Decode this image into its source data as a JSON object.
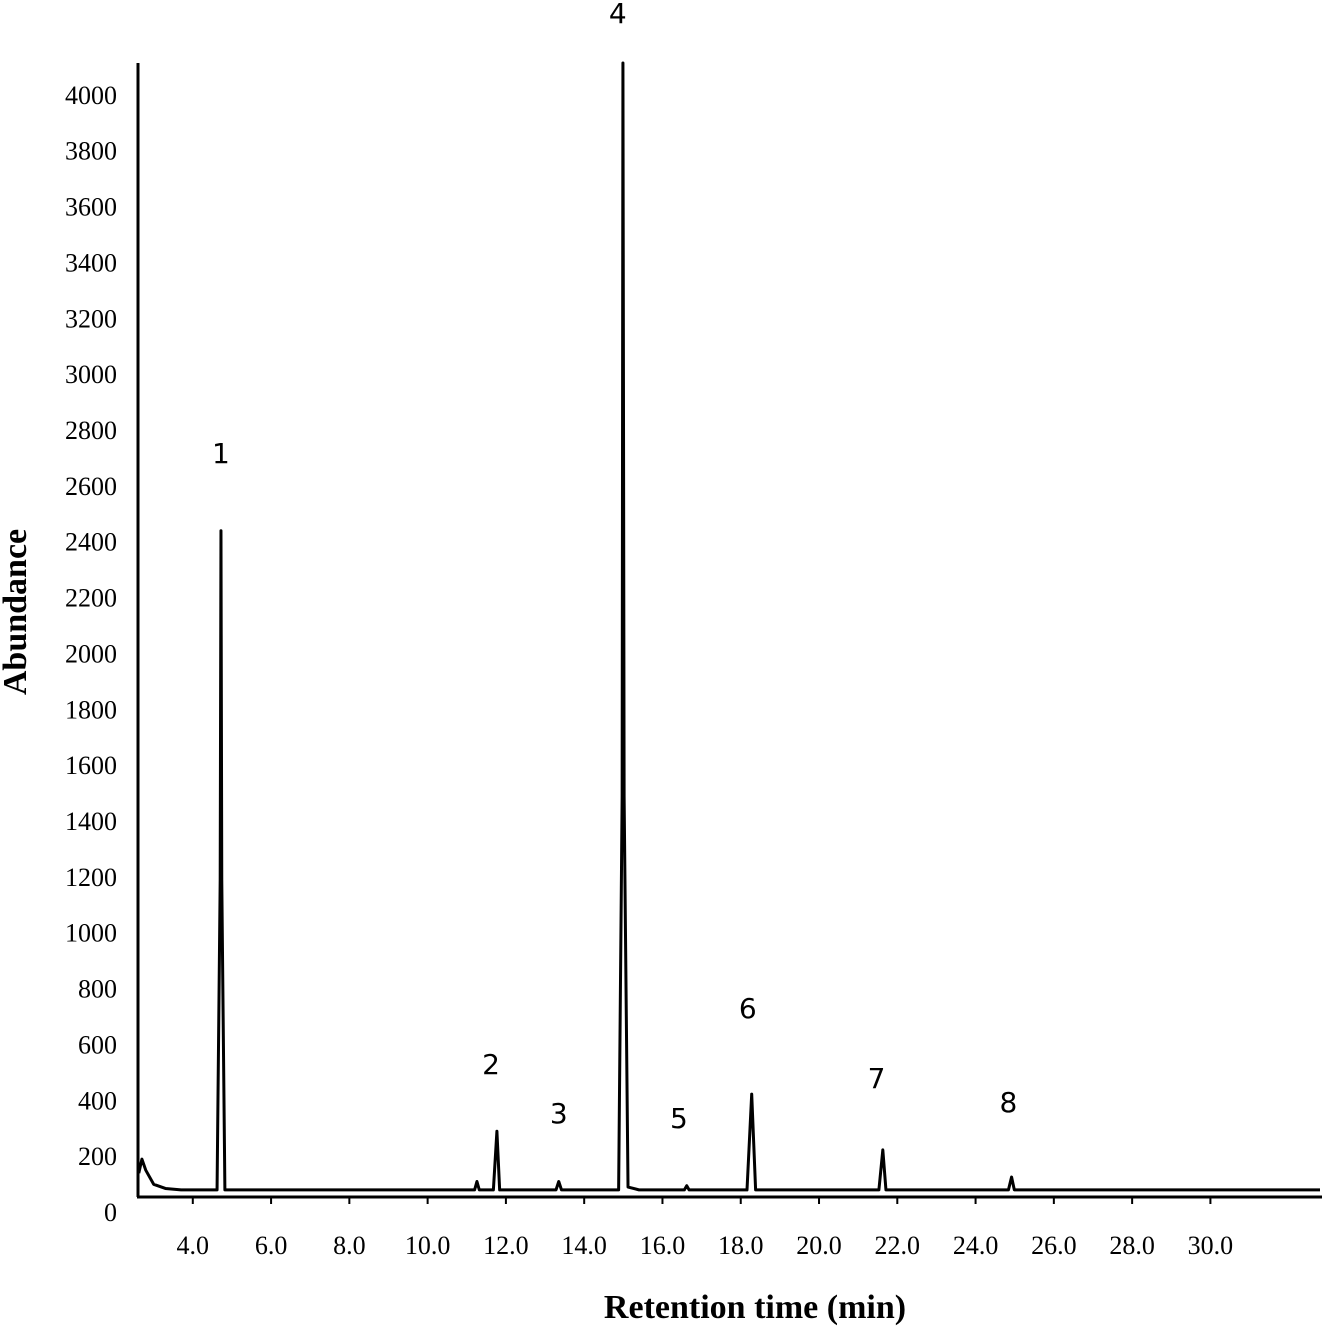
{
  "chart_data": {
    "type": "line",
    "xlabel": "Retention time (min)",
    "ylabel": "Abundance",
    "xlim": [
      2.6,
      32.8
    ],
    "ylim": [
      0,
      4125
    ],
    "xticks": [
      {
        "value": 4,
        "label": "4.0"
      },
      {
        "value": 6,
        "label": "6.0"
      },
      {
        "value": 8,
        "label": "8.0"
      },
      {
        "value": 10,
        "label": "10.0"
      },
      {
        "value": 12,
        "label": "12.0"
      },
      {
        "value": 14,
        "label": "14.0"
      },
      {
        "value": 16,
        "label": "16.0"
      },
      {
        "value": 18,
        "label": "18.0"
      },
      {
        "value": 20,
        "label": "20.0"
      },
      {
        "value": 22,
        "label": "22.0"
      },
      {
        "value": 24,
        "label": "24.0"
      },
      {
        "value": 26,
        "label": "26.0"
      },
      {
        "value": 28,
        "label": "28.0"
      },
      {
        "value": 30,
        "label": "30.0"
      }
    ],
    "yticks": [
      0,
      200,
      400,
      600,
      800,
      1000,
      1200,
      1400,
      1600,
      1800,
      2000,
      2200,
      2400,
      2600,
      2800,
      3000,
      3200,
      3400,
      3600,
      3800,
      4000
    ],
    "grid": false,
    "series": [
      {
        "color": "#000000",
        "x": [
          2.62,
          2.7,
          2.8,
          3.0,
          3.3,
          3.7,
          4.62,
          4.7,
          4.72,
          4.74,
          4.82,
          11.2,
          11.26,
          11.32,
          11.68,
          11.77,
          11.84,
          13.28,
          13.35,
          13.42,
          14.88,
          14.97,
          14.99,
          15.02,
          15.12,
          15.4,
          16.56,
          16.62,
          16.68,
          18.16,
          18.28,
          18.38,
          21.53,
          21.63,
          21.71,
          24.84,
          24.92,
          24.99,
          32.8
        ],
        "values": [
          150,
          200,
          160,
          110,
          95,
          90,
          90,
          1200,
          2450,
          1200,
          90,
          90,
          120,
          90,
          90,
          300,
          90,
          90,
          120,
          90,
          90,
          1500,
          4125,
          1500,
          100,
          90,
          90,
          105,
          90,
          90,
          433,
          90,
          90,
          233,
          90,
          90,
          136,
          90,
          90
        ]
      }
    ],
    "annotations": [
      {
        "text": "1",
        "x": 4.72,
        "y": 2722
      },
      {
        "text": "2",
        "x": 11.62,
        "y": 534
      },
      {
        "text": "3",
        "x": 13.35,
        "y": 358
      },
      {
        "text": "4",
        "x": 14.86,
        "y": 4297
      },
      {
        "text": "5",
        "x": 16.42,
        "y": 340
      },
      {
        "text": "6",
        "x": 18.18,
        "y": 734
      },
      {
        "text": "7",
        "x": 21.47,
        "y": 483
      },
      {
        "text": "8",
        "x": 24.84,
        "y": 398
      }
    ]
  }
}
